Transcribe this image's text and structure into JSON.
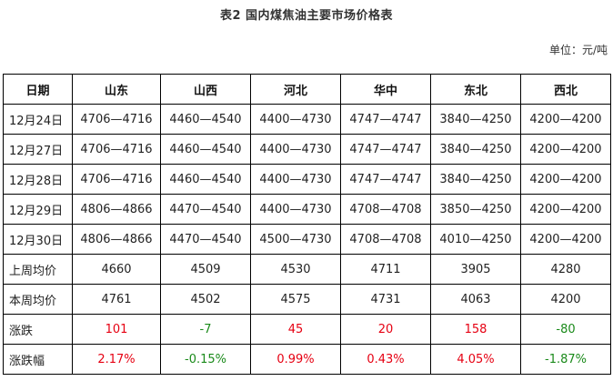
{
  "title": "表2  国内煤焦油主要市场价格表",
  "unit": "单位：元/吨",
  "colors": {
    "up": "#e60012",
    "down": "#1a8a1a"
  },
  "table": {
    "headers": [
      "日期",
      "山东",
      "山西",
      "河北",
      "华中",
      "东北",
      "西北"
    ],
    "rows": [
      {
        "label": "12月24日",
        "cells": [
          "4706—4716",
          "4460—4540",
          "4400—4730",
          "4747—4747",
          "3840—4250",
          "4200—4200"
        ]
      },
      {
        "label": "12月27日",
        "cells": [
          "4706—4716",
          "4460—4540",
          "4400—4730",
          "4747—4747",
          "3840—4250",
          "4200—4200"
        ]
      },
      {
        "label": "12月28日",
        "cells": [
          "4706—4716",
          "4460—4540",
          "4400—4730",
          "4747—4747",
          "3840—4250",
          "4200—4200"
        ]
      },
      {
        "label": "12月29日",
        "cells": [
          "4806—4866",
          "4470—4540",
          "4400—4730",
          "4708—4708",
          "3850—4250",
          "4200—4200"
        ]
      },
      {
        "label": "12月30日",
        "cells": [
          "4806—4866",
          "4470—4540",
          "4500—4730",
          "4708—4708",
          "4010—4250",
          "4200—4200"
        ]
      },
      {
        "label": "上周均价",
        "cells": [
          "4660",
          "4509",
          "4530",
          "4711",
          "3905",
          "4280"
        ]
      },
      {
        "label": "本周均价",
        "cells": [
          "4761",
          "4502",
          "4575",
          "4731",
          "4063",
          "4200"
        ]
      },
      {
        "label": "涨跌",
        "cells": [
          "101",
          "-7",
          "45",
          "20",
          "158",
          "-80"
        ]
      },
      {
        "label": "涨跌幅",
        "cells": [
          "2.17%",
          "-0.15%",
          "0.99%",
          "0.43%",
          "4.05%",
          "-1.87%"
        ]
      }
    ]
  }
}
